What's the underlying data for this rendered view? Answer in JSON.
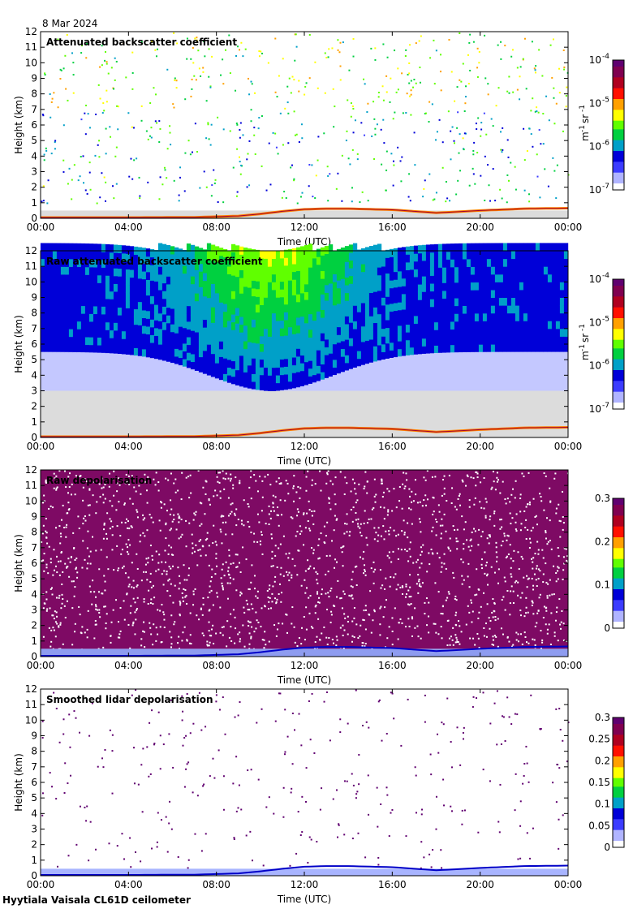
{
  "header": {
    "date": "8 Mar 2024"
  },
  "footer": {
    "instrument": "Hyytiala Vaisala CL61D ceilometer"
  },
  "colors": {
    "frame": "#000000",
    "clear_air": "#dcdcdc",
    "depol_noise": "#7e0a64",
    "colormap": [
      "#ffffff",
      "#b0b4ff",
      "#3c3cff",
      "#0000d8",
      "#00a0c8",
      "#00d040",
      "#60ff00",
      "#ffff00",
      "#ffa000",
      "#ff1000",
      "#b00020",
      "#800050",
      "#600070"
    ]
  },
  "chart_data": [
    {
      "type": "heatmap",
      "title": "Attenuated backscatter coefficient",
      "xlabel": "Time (UTC)",
      "ylabel": "Height (km)",
      "xticks": [
        "00:00",
        "04:00",
        "08:00",
        "12:00",
        "16:00",
        "20:00",
        "00:00"
      ],
      "x_hours": [
        0,
        4,
        8,
        12,
        16,
        20,
        24
      ],
      "yticks": [
        "0",
        "1",
        "2",
        "3",
        "4",
        "5",
        "6",
        "7",
        "8",
        "9",
        "10",
        "11",
        "12"
      ],
      "ylim": [
        0,
        12
      ],
      "colorbar": {
        "scale": "log",
        "ticks_base": [
          "10",
          "10",
          "10",
          "10"
        ],
        "ticks_exp": [
          "-4",
          "-5",
          "-6",
          "-7"
        ],
        "units_m": "m",
        "units_m_exp": "-1",
        "units_sr": "sr",
        "units_sr_exp": "-1"
      },
      "boundary_layer_km": {
        "hours": [
          0,
          4,
          7,
          9,
          10,
          11,
          12,
          13,
          14,
          16,
          18,
          20,
          22,
          24
        ],
        "height": [
          0.05,
          0.05,
          0.07,
          0.15,
          0.28,
          0.45,
          0.58,
          0.62,
          0.62,
          0.55,
          0.35,
          0.5,
          0.62,
          0.65
        ]
      }
    },
    {
      "type": "heatmap",
      "title": "Raw attenuated backscatter coefficient",
      "xlabel": "Time (UTC)",
      "ylabel": "Height (km)",
      "xticks": [
        "00:00",
        "04:00",
        "08:00",
        "12:00",
        "16:00",
        "20:00",
        "00:00"
      ],
      "x_hours": [
        0,
        4,
        8,
        12,
        16,
        20,
        24
      ],
      "yticks": [
        "0",
        "1",
        "2",
        "3",
        "4",
        "5",
        "6",
        "7",
        "8",
        "9",
        "10",
        "11",
        "12"
      ],
      "ylim": [
        0,
        12
      ],
      "colorbar": {
        "scale": "log",
        "ticks_base": [
          "10",
          "10",
          "10",
          "10"
        ],
        "ticks_exp": [
          "-4",
          "-5",
          "-6",
          "-7"
        ],
        "units_m": "m",
        "units_m_exp": "-1",
        "units_sr": "sr",
        "units_sr_exp": "-1"
      }
    },
    {
      "type": "heatmap",
      "title": "Raw depolarisation",
      "xlabel": "Time (UTC)",
      "ylabel": "Height (km)",
      "xticks": [
        "00:00",
        "04:00",
        "08:00",
        "12:00",
        "16:00",
        "20:00",
        "00:00"
      ],
      "x_hours": [
        0,
        4,
        8,
        12,
        16,
        20,
        24
      ],
      "yticks": [
        "0",
        "1",
        "2",
        "3",
        "4",
        "5",
        "6",
        "7",
        "8",
        "9",
        "10",
        "11",
        "12"
      ],
      "ylim": [
        0,
        12
      ],
      "colorbar": {
        "scale": "linear",
        "range": [
          0,
          0.3
        ],
        "ticks": [
          "0.3",
          "0.2",
          "0.1",
          "0"
        ]
      }
    },
    {
      "type": "heatmap",
      "title": "Smoothed lidar depolarisation",
      "xlabel": "Time (UTC)",
      "ylabel": "Height (km)",
      "xticks": [
        "00:00",
        "04:00",
        "08:00",
        "12:00",
        "16:00",
        "20:00",
        "00:00"
      ],
      "x_hours": [
        0,
        4,
        8,
        12,
        16,
        20,
        24
      ],
      "yticks": [
        "0",
        "1",
        "2",
        "3",
        "4",
        "5",
        "6",
        "7",
        "8",
        "9",
        "10",
        "11",
        "12"
      ],
      "ylim": [
        0,
        12
      ],
      "colorbar": {
        "scale": "linear",
        "range": [
          0,
          0.3
        ],
        "ticks": [
          "0.3",
          "0.25",
          "0.2",
          "0.15",
          "0.1",
          "0.05",
          "0"
        ]
      }
    }
  ]
}
